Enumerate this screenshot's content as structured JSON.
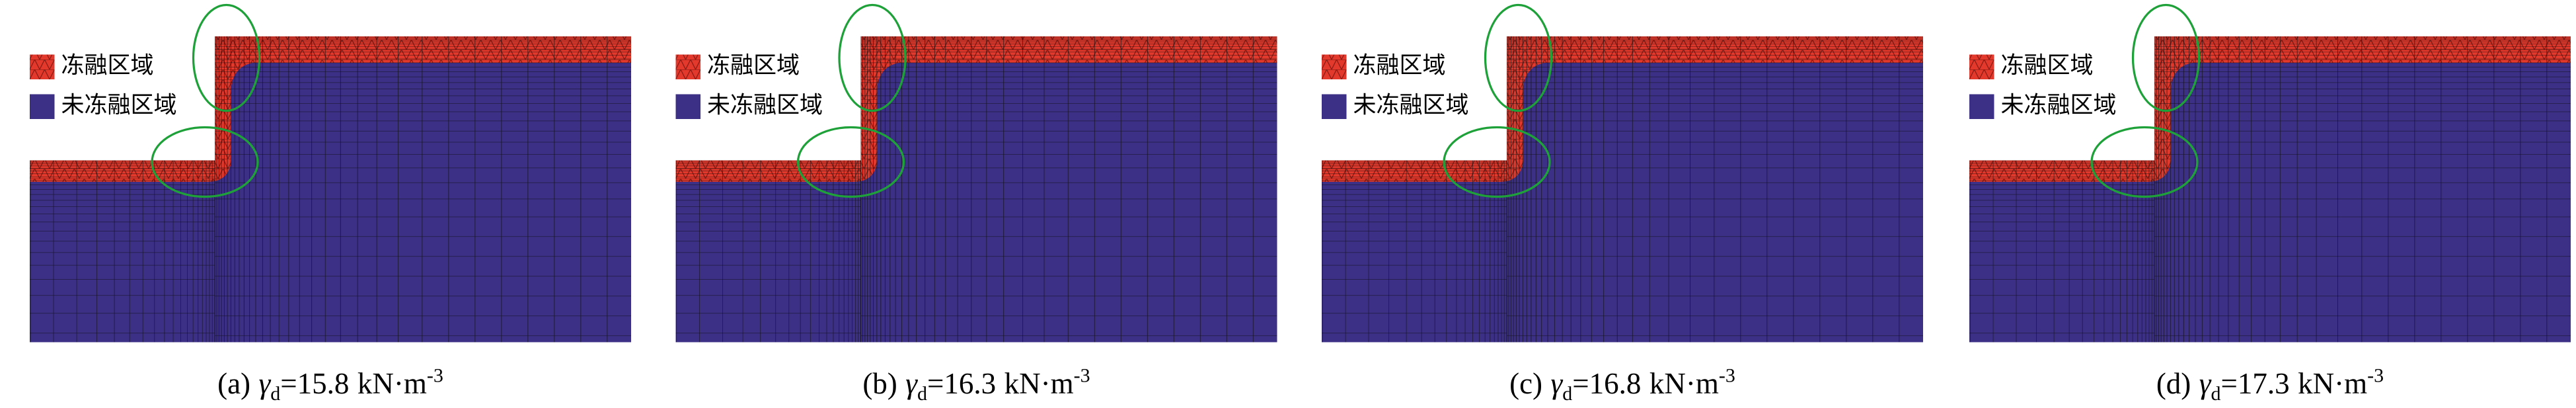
{
  "panels": [
    {
      "legend": [
        "冻融区域",
        "未冻融区域"
      ],
      "caption": {
        "label": "(a)",
        "symbol": "γ",
        "subscript": "d",
        "relation": "=",
        "value": 15.8,
        "unit": "kN·m",
        "exponent": "-3"
      }
    },
    {
      "legend": [
        "冻融区域",
        "未冻融区域"
      ],
      "caption": {
        "label": "(b)",
        "symbol": "γ",
        "subscript": "d",
        "relation": "=",
        "value": 16.3,
        "unit": "kN·m",
        "exponent": "-3"
      }
    },
    {
      "legend": [
        "冻融区域",
        "未冻融区域"
      ],
      "caption": {
        "label": "(c)",
        "symbol": "γ",
        "subscript": "d",
        "relation": "=",
        "value": 16.8,
        "unit": "kN·m",
        "exponent": "-3"
      }
    },
    {
      "legend": [
        "冻融区域",
        "未冻融区域"
      ],
      "caption": {
        "label": "(d)",
        "symbol": "γ",
        "subscript": "d",
        "relation": "=",
        "value": 17.3,
        "unit": "kN·m",
        "exponent": "-3"
      }
    }
  ]
}
